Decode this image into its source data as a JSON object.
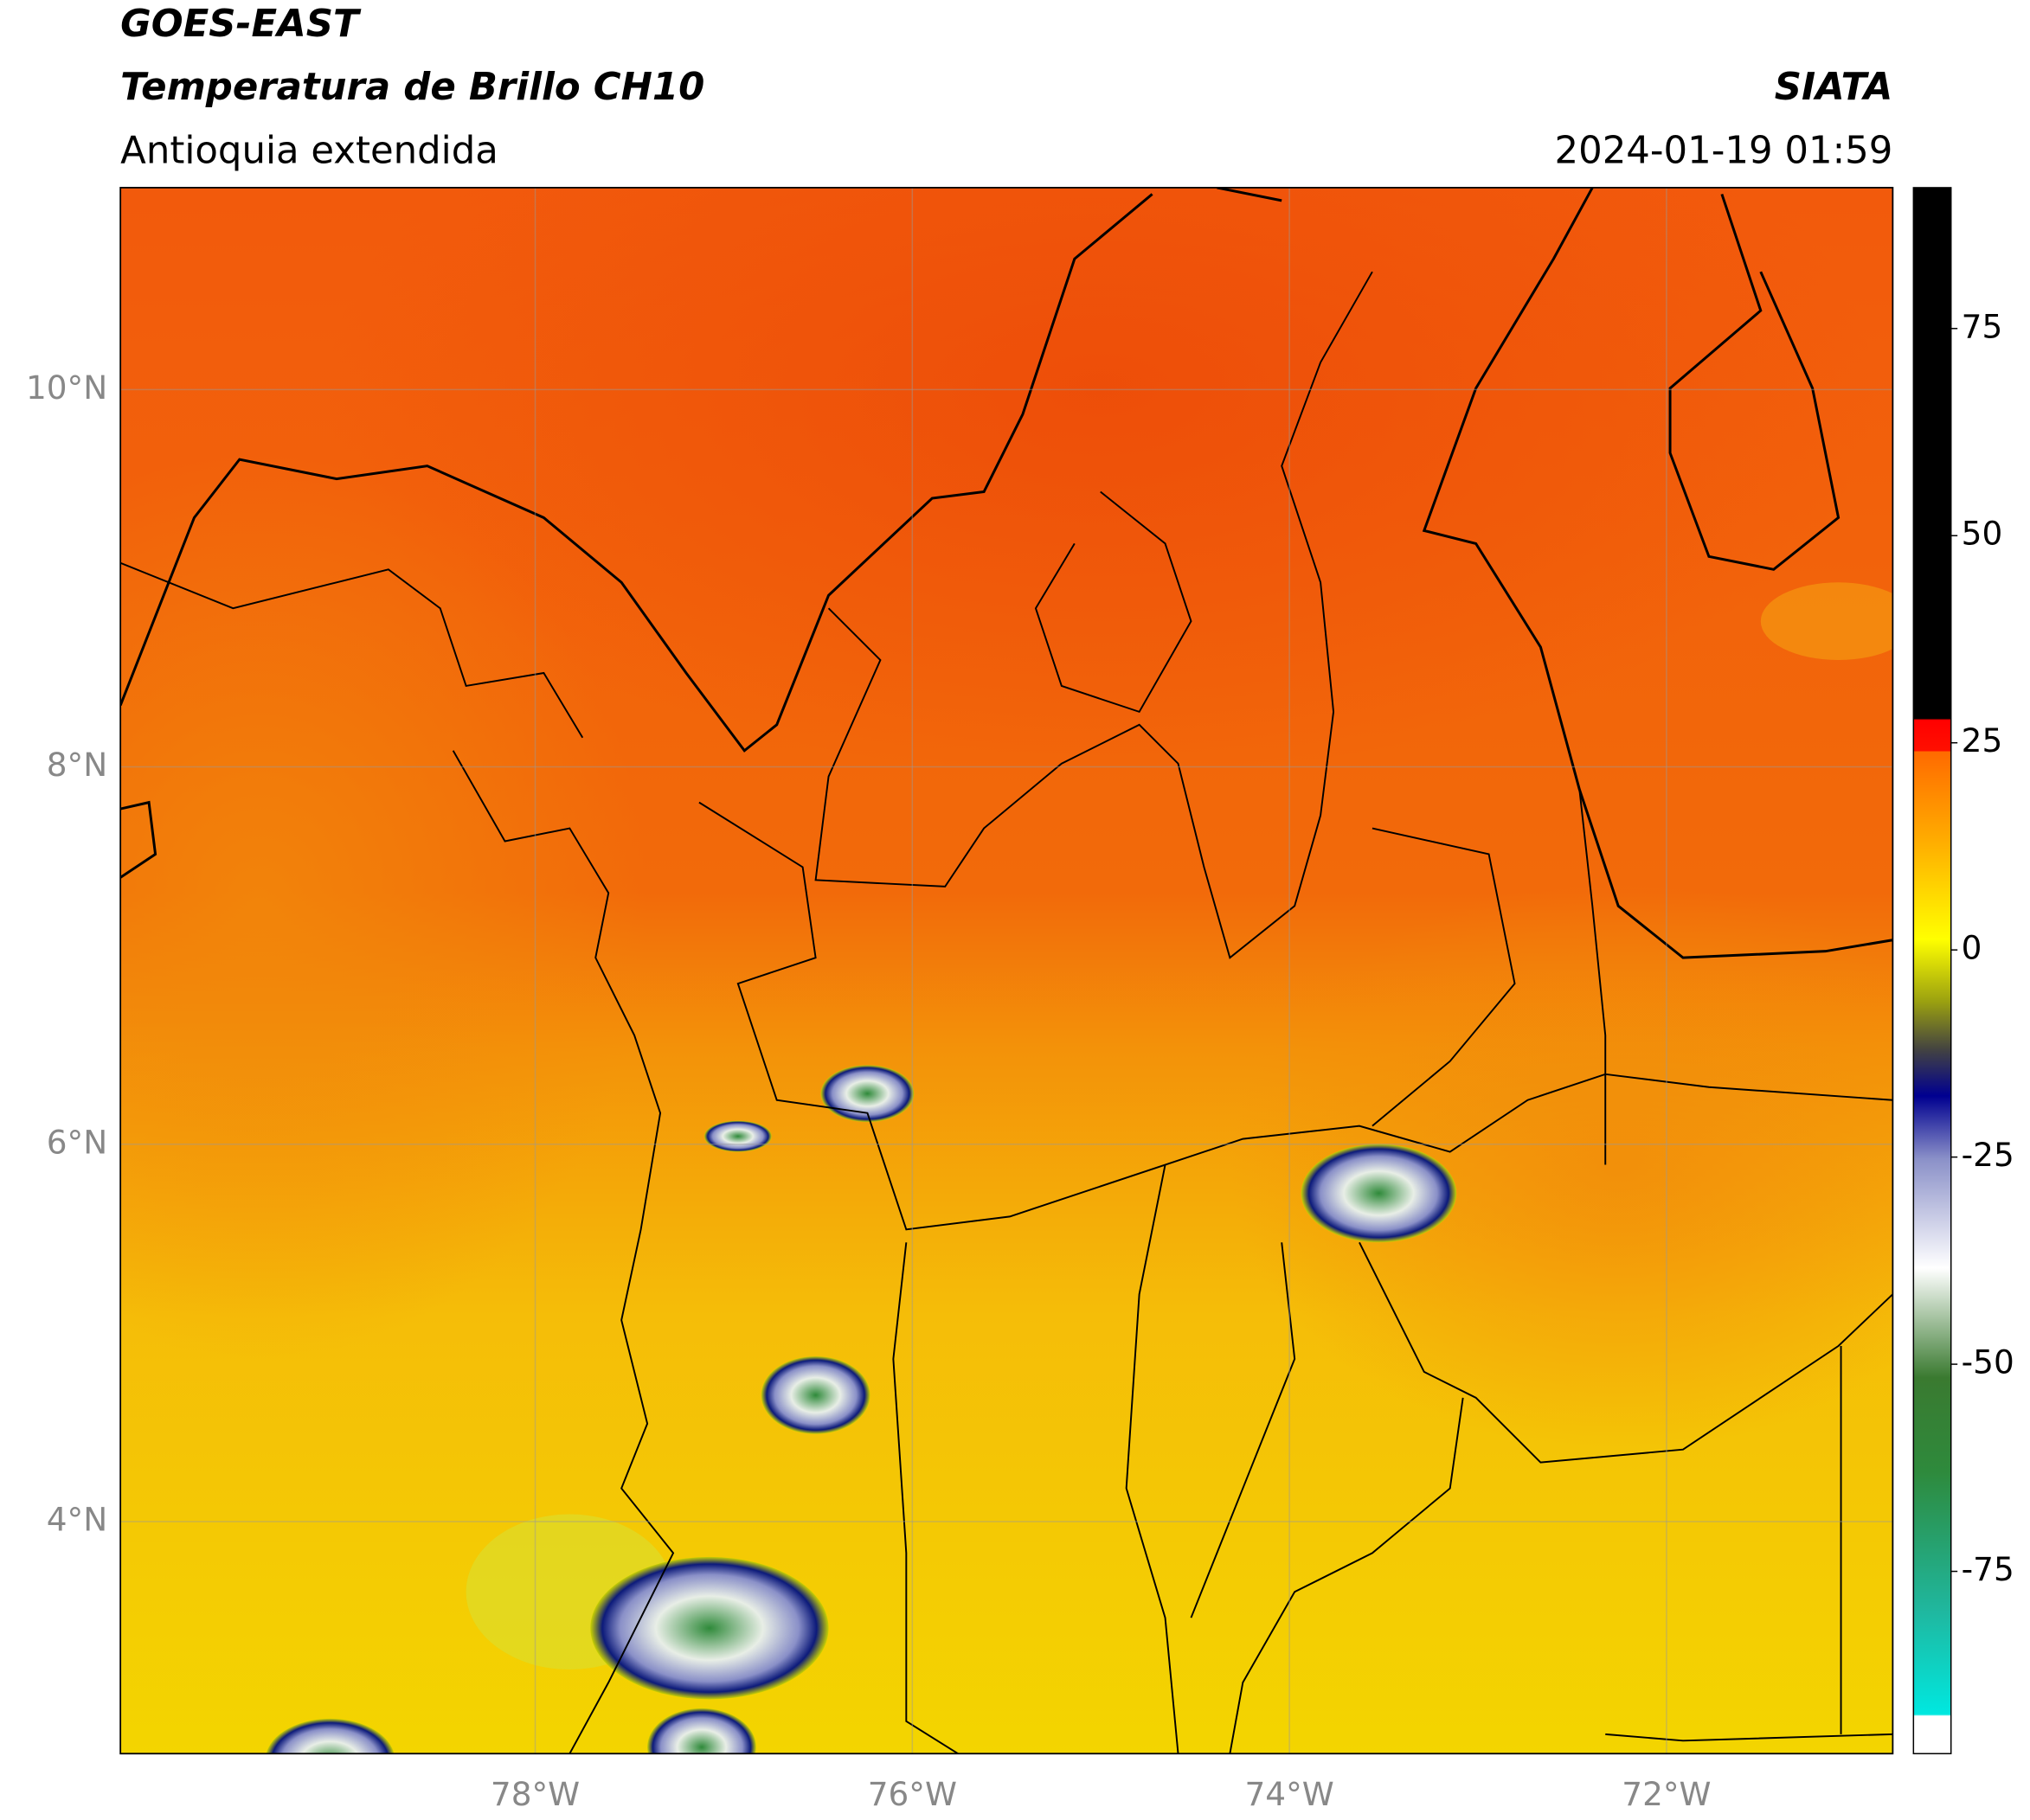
{
  "header": {
    "source": "GOES-EAST",
    "product": "Temperatura de Brillo CH10",
    "region": "Antioquia extendida",
    "agency": "SIATA",
    "datetime": "2024-01-19 01:59"
  },
  "map": {
    "xlim": [
      -80.2,
      -70.8
    ],
    "ylim": [
      2.77,
      11.07
    ],
    "xticks": [
      {
        "value": -78,
        "label": "78°W"
      },
      {
        "value": -76,
        "label": "76°W"
      },
      {
        "value": -74,
        "label": "74°W"
      },
      {
        "value": -72,
        "label": "72°W"
      }
    ],
    "yticks": [
      {
        "value": 10,
        "label": "10°N"
      },
      {
        "value": 8,
        "label": "8°N"
      },
      {
        "value": 6,
        "label": "6°N"
      },
      {
        "value": 4,
        "label": "4°N"
      }
    ]
  },
  "colorbar": {
    "lim": [
      -97,
      92
    ],
    "ticks": [
      75,
      50,
      25,
      0,
      -25,
      -50,
      -75
    ]
  }
}
